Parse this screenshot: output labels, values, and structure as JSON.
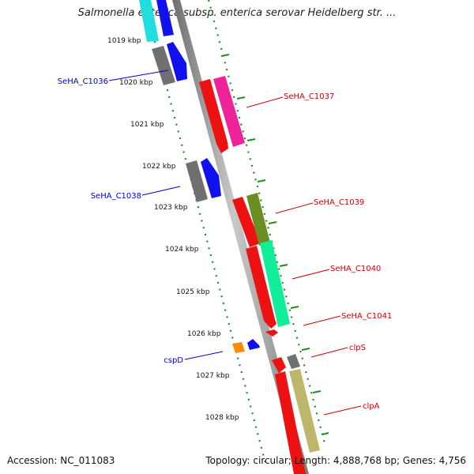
{
  "title": "Salmonella enterica subsp. enterica serovar Heidelberg str. ...",
  "footer": {
    "accession": "Accession: NC_011083",
    "summary": "Topology: circular; Length: 4,888,768 bp; Genes: 4,756"
  },
  "kbp_labels": [
    "1019 kbp",
    "1020 kbp",
    "1021 kbp",
    "1022 kbp",
    "1023 kbp",
    "1024 kbp",
    "1025 kbp",
    "1026 kbp",
    "1027 kbp",
    "1028 kbp"
  ],
  "gene_labels": {
    "SeHA_C1036": "SeHA_C1036",
    "SeHA_C1037": "SeHA_C1037",
    "SeHA_C1038": "SeHA_C1038",
    "SeHA_C1039": "SeHA_C1039",
    "SeHA_C1040": "SeHA_C1040",
    "SeHA_C1041": "SeHA_C1041",
    "cspD": "cspD",
    "clpS": "clpS",
    "clpA": "clpA"
  },
  "colors": {
    "backbone": "#a9a9a9",
    "forward_label": "#0000cc",
    "reverse_label": "#cc0000",
    "tick": "#228b22",
    "red": "#ee1111",
    "blue": "#1111ee",
    "gray": "#707070",
    "cyan": "#22dddd",
    "magenta": "#ee2299",
    "olive": "#6b8e23",
    "springgreen": "#11ee99",
    "orange": "#ff8c00",
    "khaki": "#bdb76b"
  }
}
